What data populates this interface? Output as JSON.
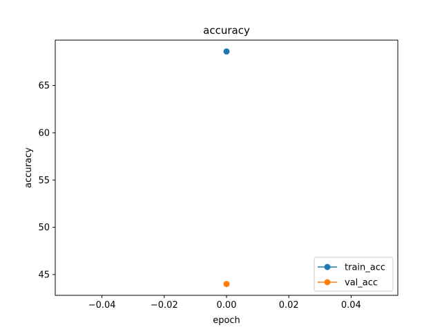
{
  "chart_data": {
    "type": "line",
    "title": "accuracy",
    "xlabel": "epoch",
    "ylabel": "accuracy",
    "xlim": [
      -0.055,
      0.055
    ],
    "ylim": [
      42.8,
      69.8
    ],
    "xticks": [
      -0.04,
      -0.02,
      0.0,
      0.02,
      0.04
    ],
    "xtick_labels": [
      "−0.04",
      "−0.02",
      "0.00",
      "0.02",
      "0.04"
    ],
    "yticks": [
      45,
      50,
      55,
      60,
      65
    ],
    "ytick_labels": [
      "45",
      "50",
      "55",
      "60",
      "65"
    ],
    "grid": false,
    "legend_position": "lower-right",
    "series": [
      {
        "name": "train_acc",
        "color": "#1f77b4",
        "x": [
          0
        ],
        "y": [
          68.6
        ]
      },
      {
        "name": "val_acc",
        "color": "#ff7f0e",
        "x": [
          0
        ],
        "y": [
          44.0
        ]
      }
    ]
  }
}
